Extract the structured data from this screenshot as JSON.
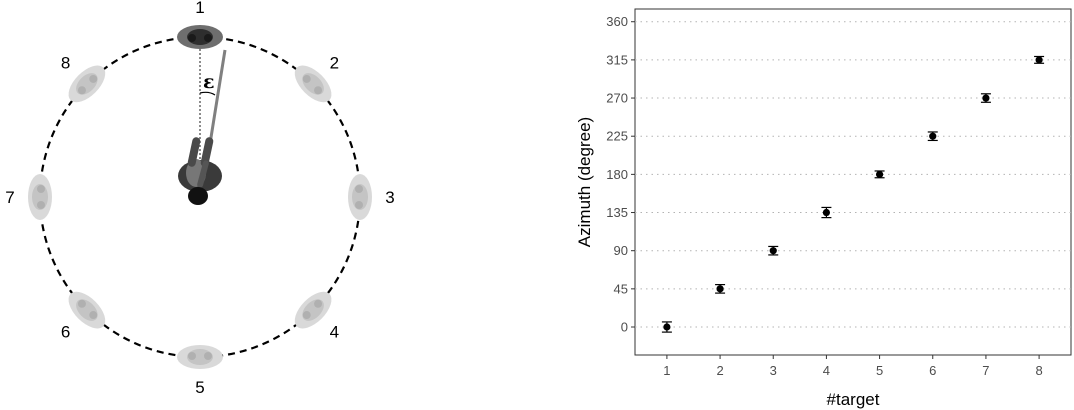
{
  "diagram": {
    "targets": [
      "1",
      "2",
      "3",
      "4",
      "5",
      "6",
      "7",
      "8"
    ],
    "epsilon": "ε"
  },
  "chart_data": {
    "type": "scatter",
    "title": "",
    "xlabel": "#target",
    "ylabel": "Azimuth (degree)",
    "x": [
      1,
      2,
      3,
      4,
      5,
      6,
      7,
      8
    ],
    "y": [
      0,
      45,
      90,
      135,
      180,
      225,
      270,
      315
    ],
    "error": [
      6,
      5,
      5,
      6,
      4,
      5,
      5,
      4
    ],
    "xticks": [
      "1",
      "2",
      "3",
      "4",
      "5",
      "6",
      "7",
      "8"
    ],
    "yticks": [
      "0",
      "45",
      "90",
      "135",
      "180",
      "225",
      "270",
      "315",
      "360"
    ],
    "xlim": [
      0.4,
      8.6
    ],
    "ylim": [
      -33,
      375
    ],
    "grid": "horizontal dotted",
    "point_color": "#000000"
  }
}
